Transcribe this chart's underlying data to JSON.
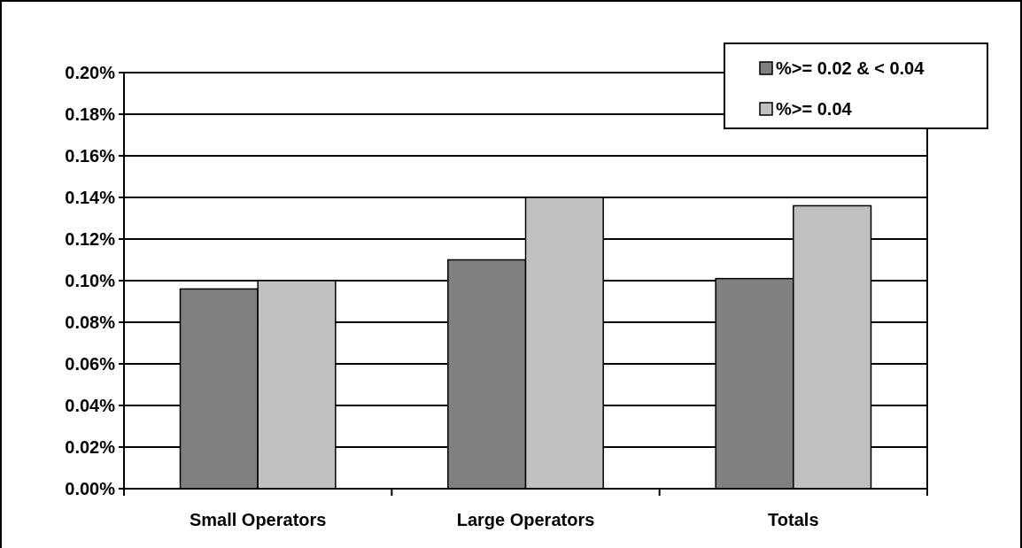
{
  "chart_data": {
    "type": "bar",
    "categories": [
      "Small Operators",
      "Large Operators",
      "Totals"
    ],
    "series": [
      {
        "name": "%>= 0.02 & < 0.04",
        "color": "#808080",
        "values": [
          0.096,
          0.11,
          0.101
        ]
      },
      {
        "name": "%>= 0.04",
        "color": "#c0c0c0",
        "values": [
          0.1,
          0.14,
          0.136
        ]
      }
    ],
    "ylim": [
      0,
      0.2
    ],
    "yticks": [
      {
        "value": 0,
        "label": "0.00%"
      },
      {
        "value": 0.02,
        "label": "0.02%"
      },
      {
        "value": 0.04,
        "label": "0.04%"
      },
      {
        "value": 0.06,
        "label": "0.06%"
      },
      {
        "value": 0.08,
        "label": "0.08%"
      },
      {
        "value": 0.1,
        "label": "0.10%"
      },
      {
        "value": 0.12,
        "label": "0.12%"
      },
      {
        "value": 0.14,
        "label": "0.14%"
      },
      {
        "value": 0.16,
        "label": "0.16%"
      },
      {
        "value": 0.18,
        "label": "0.18%"
      },
      {
        "value": 0.2,
        "label": "0.20%"
      }
    ],
    "grid": "y",
    "legend": "top right"
  }
}
